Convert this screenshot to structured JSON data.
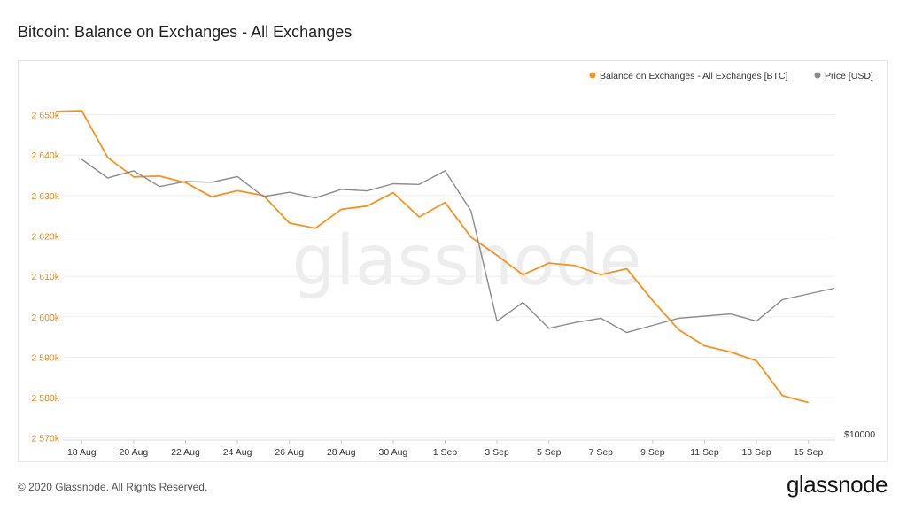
{
  "page": {
    "title": "Bitcoin: Balance on Exchanges - All Exchanges",
    "copyright": "© 2020 Glassnode. All Rights Reserved.",
    "brand": "glassnode",
    "watermark": "glassnode"
  },
  "colors": {
    "balance": "#f7931a",
    "price": "#8c8c8c",
    "axis_left": "#d98b28",
    "grid": "#eeeeee",
    "text": "#333333"
  },
  "chart_data": {
    "type": "line",
    "legend_position": "top-right",
    "grid": true,
    "x": [
      "17 Aug",
      "18 Aug",
      "19 Aug",
      "20 Aug",
      "21 Aug",
      "22 Aug",
      "23 Aug",
      "24 Aug",
      "25 Aug",
      "26 Aug",
      "27 Aug",
      "28 Aug",
      "29 Aug",
      "30 Aug",
      "31 Aug",
      "1 Sep",
      "2 Sep",
      "3 Sep",
      "4 Sep",
      "5 Sep",
      "6 Sep",
      "7 Sep",
      "8 Sep",
      "9 Sep",
      "10 Sep",
      "11 Sep",
      "12 Sep",
      "13 Sep",
      "14 Sep",
      "15 Sep",
      "16 Sep"
    ],
    "x_ticks": [
      "18 Aug",
      "20 Aug",
      "22 Aug",
      "24 Aug",
      "26 Aug",
      "28 Aug",
      "30 Aug",
      "1 Sep",
      "3 Sep",
      "5 Sep",
      "7 Sep",
      "9 Sep",
      "11 Sep",
      "13 Sep",
      "15 Sep"
    ],
    "y_left": {
      "ticks": [
        2570000,
        2580000,
        2590000,
        2600000,
        2610000,
        2620000,
        2630000,
        2640000,
        2650000
      ],
      "tick_labels": [
        "2 570k",
        "2 580k",
        "2 590k",
        "2 600k",
        "2 610k",
        "2 620k",
        "2 630k",
        "2 640k",
        "2 650k"
      ],
      "range": [
        2569500,
        2654500
      ]
    },
    "y_right": {
      "tick_labels": [
        "$10000"
      ],
      "ticks": [
        10000
      ],
      "range": [
        10000,
        12400
      ]
    },
    "series": [
      {
        "name": "Balance on Exchanges - All Exchanges [BTC]",
        "axis": "left",
        "values": [
          2650800,
          2651000,
          2639400,
          2634600,
          2634800,
          2633200,
          2629700,
          2631200,
          2630000,
          2623200,
          2621900,
          2626600,
          2627400,
          2630700,
          2624700,
          2628300,
          2619700,
          2615200,
          2610400,
          2613300,
          2612700,
          2610400,
          2611900,
          2604000,
          2596800,
          2592800,
          2591300,
          2589100,
          2580500,
          2578800,
          null
        ]
      },
      {
        "name": "Price [USD]",
        "axis": "right",
        "values": [
          null,
          11930,
          11800,
          11850,
          11740,
          11775,
          11770,
          11810,
          11670,
          11700,
          11660,
          11720,
          11710,
          11760,
          11755,
          11850,
          11570,
          10800,
          10930,
          10750,
          10790,
          10820,
          10720,
          10770,
          10820,
          10835,
          10850,
          10800,
          10950,
          10990,
          11030
        ]
      }
    ]
  }
}
